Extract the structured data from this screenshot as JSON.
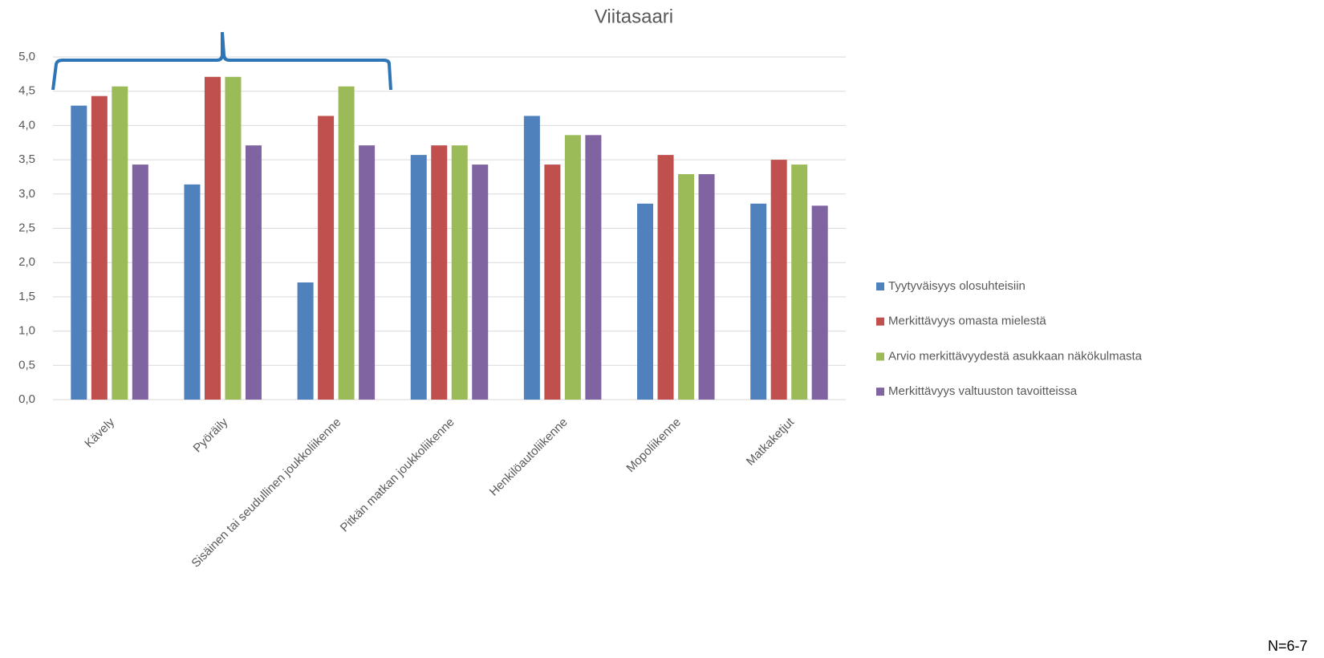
{
  "chart_data": {
    "type": "bar",
    "title": "Viitasaari",
    "categories": [
      "Kävely",
      "Pyöräily",
      "Sisäinen tai seudullinen joukkoliikenne",
      "Pitkän matkan joukkoliikenne",
      "Henkilöautoliikenne",
      "Mopoliikenne",
      "Matkaketjut"
    ],
    "series": [
      {
        "name": "Tyytyväisyys olosuhteisiin",
        "color": "#4f81bd",
        "values": [
          4.29,
          3.14,
          1.71,
          3.57,
          4.14,
          2.86,
          2.86
        ]
      },
      {
        "name": "Merkittävyys omasta mielestä",
        "color": "#c0504d",
        "values": [
          4.43,
          4.71,
          4.14,
          3.71,
          3.43,
          3.57,
          3.5
        ]
      },
      {
        "name": "Arvio merkittävyydestä asukkaan näkökulmasta",
        "color": "#9bbb59",
        "values": [
          4.57,
          4.71,
          4.57,
          3.71,
          3.86,
          3.29,
          3.43
        ]
      },
      {
        "name": "Merkittävyys valtuuston tavoitteissa",
        "color": "#8064a2",
        "values": [
          3.43,
          3.71,
          3.71,
          3.43,
          3.86,
          3.29,
          2.83
        ]
      }
    ],
    "ylim": [
      0,
      5
    ],
    "yticks": [
      {
        "value": 0,
        "label": "0,0"
      },
      {
        "value": 0.5,
        "label": "0,5"
      },
      {
        "value": 1,
        "label": "1,0"
      },
      {
        "value": 1.5,
        "label": "1,5"
      },
      {
        "value": 2,
        "label": "2,0"
      },
      {
        "value": 2.5,
        "label": "2,5"
      },
      {
        "value": 3,
        "label": "3,0"
      },
      {
        "value": 3.5,
        "label": "3,5"
      },
      {
        "value": 4,
        "label": "4,0"
      },
      {
        "value": 4.5,
        "label": "4,5"
      },
      {
        "value": 5,
        "label": "5,0"
      }
    ],
    "grid": true,
    "legend": "right",
    "note": "N=6-7"
  }
}
